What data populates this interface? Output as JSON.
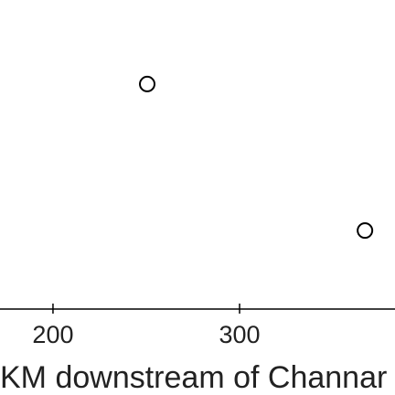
{
  "chart_data": {
    "type": "scatter",
    "x_label": "KM downstream of Channar",
    "series": [
      {
        "x": [
          250.5,
          367.2
        ],
        "values": [
          72.8,
          25.4
        ],
        "color": "#000000"
      }
    ],
    "xlim": [
      171.6,
      383.3
    ],
    "xticks": [
      200,
      300
    ],
    "ylim": [
      0,
      100
    ]
  }
}
